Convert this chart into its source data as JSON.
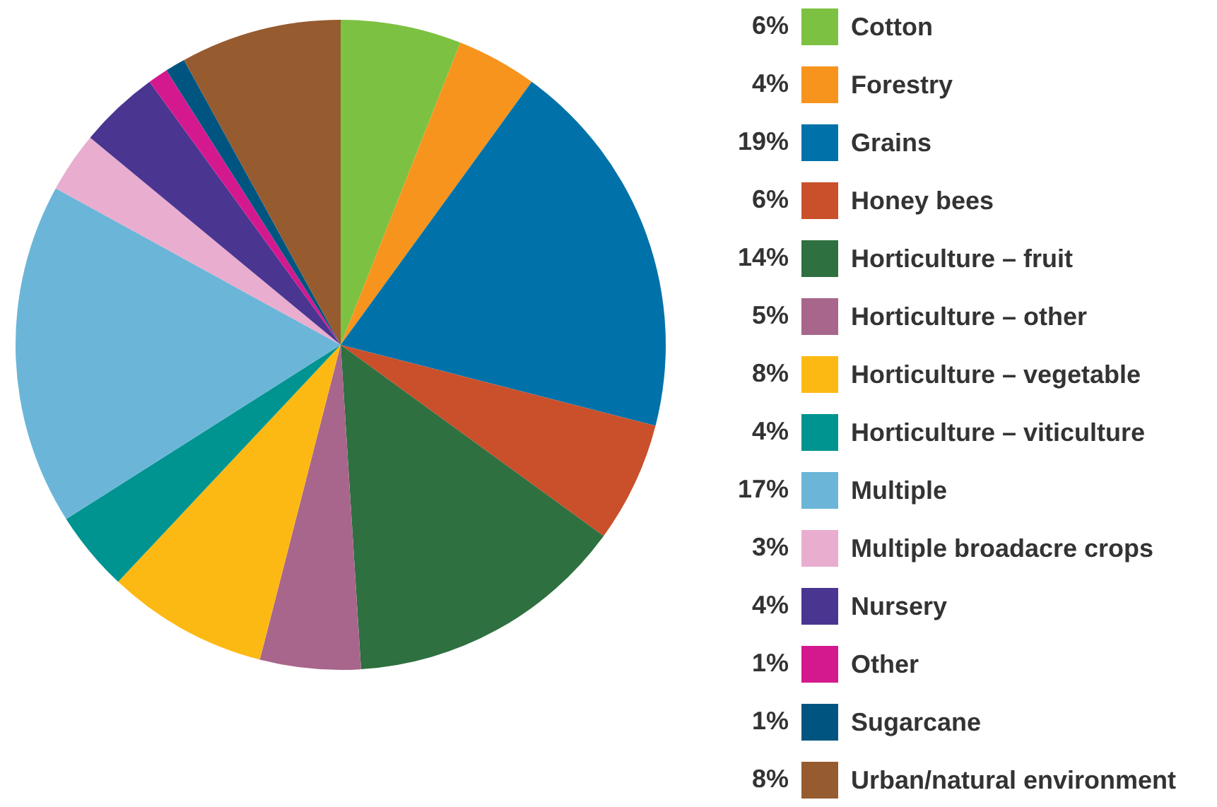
{
  "chart_data": {
    "type": "pie",
    "categories": [
      "Cotton",
      "Forestry",
      "Grains",
      "Honey bees",
      "Horticulture – fruit",
      "Horticulture – other",
      "Horticulture – vegetable",
      "Horticulture – viticulture",
      "Multiple",
      "Multiple broadacre crops",
      "Nursery",
      "Other",
      "Sugarcane",
      "Urban/natural environment"
    ],
    "values": [
      6,
      4,
      19,
      6,
      14,
      5,
      8,
      4,
      17,
      3,
      4,
      1,
      1,
      8
    ],
    "colors": [
      "#7dc142",
      "#f7941d",
      "#0072a9",
      "#c9502b",
      "#2e7040",
      "#a8668c",
      "#fdb913",
      "#009490",
      "#6bb6d8",
      "#e9adcf",
      "#4a3591",
      "#d4198f",
      "#005580",
      "#965b2f"
    ],
    "value_labels": [
      "6%",
      "4%",
      "19%",
      "6%",
      "14%",
      "5%",
      "8%",
      "4%",
      "17%",
      "3%",
      "4%",
      "1%",
      "1%",
      "8%"
    ],
    "legend": "right"
  }
}
